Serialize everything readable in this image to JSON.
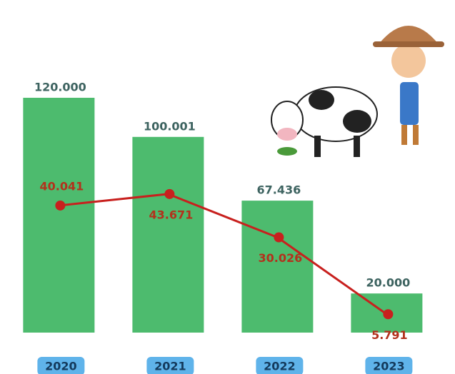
{
  "chart_data": {
    "type": "bar",
    "categories": [
      "2020",
      "2021",
      "2022",
      "2023"
    ],
    "series": [
      {
        "type": "bar",
        "color": "#4dbb6e",
        "values": [
          120000,
          100001,
          67436,
          20000
        ],
        "value_labels": [
          "120.000",
          "100.001",
          "67.436",
          "20.000"
        ]
      },
      {
        "type": "line",
        "axis": "y2",
        "color": "#c8201e",
        "values": [
          40041,
          43671,
          30026,
          5791
        ],
        "value_labels": [
          "40.041",
          "43.671",
          "30.026",
          "5.791"
        ]
      }
    ],
    "ylim": [
      0,
      120000
    ],
    "y2lim": [
      0,
      74000
    ]
  }
}
